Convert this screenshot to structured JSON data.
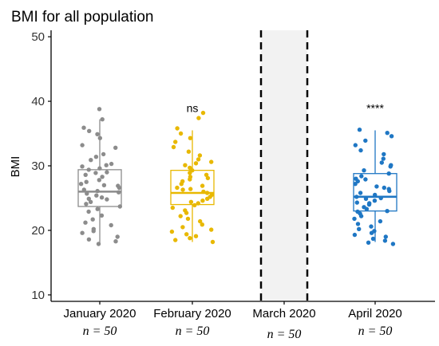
{
  "chart_data": {
    "type": "box",
    "title": "BMI for all population",
    "ylabel": "BMI",
    "xlabel": "",
    "ylim": [
      9,
      51
    ],
    "yticks": [
      10,
      20,
      30,
      40,
      50
    ],
    "grid": false,
    "legend": "none",
    "categories": [
      "January 2020",
      "February 2020",
      "March 2020",
      "April 2020"
    ],
    "counts": [
      "n = 50",
      "n = 50",
      "n = 50",
      "n = 50"
    ],
    "shaded_category": "March 2020",
    "groups": [
      {
        "category": "January 2020",
        "color": "#8c8c8c",
        "box": {
          "q1": 23.7,
          "median": 26.0,
          "q3": 29.4,
          "whisker_low": 18.0,
          "whisker_high": 37.2
        },
        "significance": "",
        "points": [
          38.8,
          37.2,
          35.9,
          35.4,
          34.9,
          34.3,
          33.2,
          32.8,
          31.8,
          31.4,
          30.9,
          30.3,
          30.1,
          29.9,
          29.6,
          29.4,
          29.0,
          28.6,
          28.3,
          27.8,
          27.5,
          27.2,
          26.9,
          26.6,
          26.3,
          26.1,
          25.9,
          25.7,
          25.4,
          25.1,
          24.8,
          24.4,
          24.1,
          23.7,
          23.3,
          22.9,
          22.3,
          21.7,
          21.2,
          20.8,
          20.2,
          19.9,
          19.6,
          19.0,
          18.6,
          18.3,
          17.9,
          24.9,
          27.0,
          28.9
        ]
      },
      {
        "category": "February 2020",
        "color": "#e8b800",
        "box": {
          "q1": 24.0,
          "median": 25.8,
          "q3": 29.3,
          "whisker_low": 18.2,
          "whisker_high": 35.5
        },
        "significance": "ns",
        "points": [
          38.2,
          37.4,
          35.8,
          35.0,
          34.3,
          33.7,
          32.9,
          32.2,
          31.6,
          31.0,
          30.6,
          30.1,
          29.7,
          29.3,
          28.9,
          28.6,
          28.3,
          27.9,
          27.6,
          27.2,
          26.9,
          26.6,
          26.3,
          26.0,
          25.8,
          25.5,
          25.2,
          24.9,
          24.6,
          24.2,
          23.9,
          23.5,
          23.1,
          22.7,
          22.2,
          21.8,
          21.4,
          20.9,
          20.5,
          20.1,
          19.8,
          19.4,
          19.1,
          18.8,
          18.5,
          18.2,
          26.4,
          28.1,
          30.4,
          24.4
        ]
      },
      {
        "category": "April 2020",
        "color": "#1f77c4",
        "box": {
          "q1": 23.0,
          "median": 25.2,
          "q3": 28.8,
          "whisker_low": 18.2,
          "whisker_high": 35.5
        },
        "significance": "****",
        "points": [
          35.6,
          35.1,
          34.6,
          33.9,
          33.2,
          32.4,
          31.8,
          31.1,
          30.5,
          29.9,
          29.3,
          28.8,
          28.4,
          28.0,
          27.6,
          27.2,
          26.8,
          26.4,
          26.1,
          25.8,
          25.5,
          25.2,
          24.9,
          24.6,
          24.3,
          24.0,
          23.6,
          23.3,
          23.0,
          22.6,
          22.2,
          21.8,
          21.4,
          21.0,
          20.6,
          20.2,
          19.9,
          19.6,
          19.3,
          19.0,
          18.7,
          18.4,
          18.1,
          17.9,
          26.6,
          25.0,
          27.9,
          24.2,
          22.9,
          30.1
        ]
      }
    ]
  }
}
